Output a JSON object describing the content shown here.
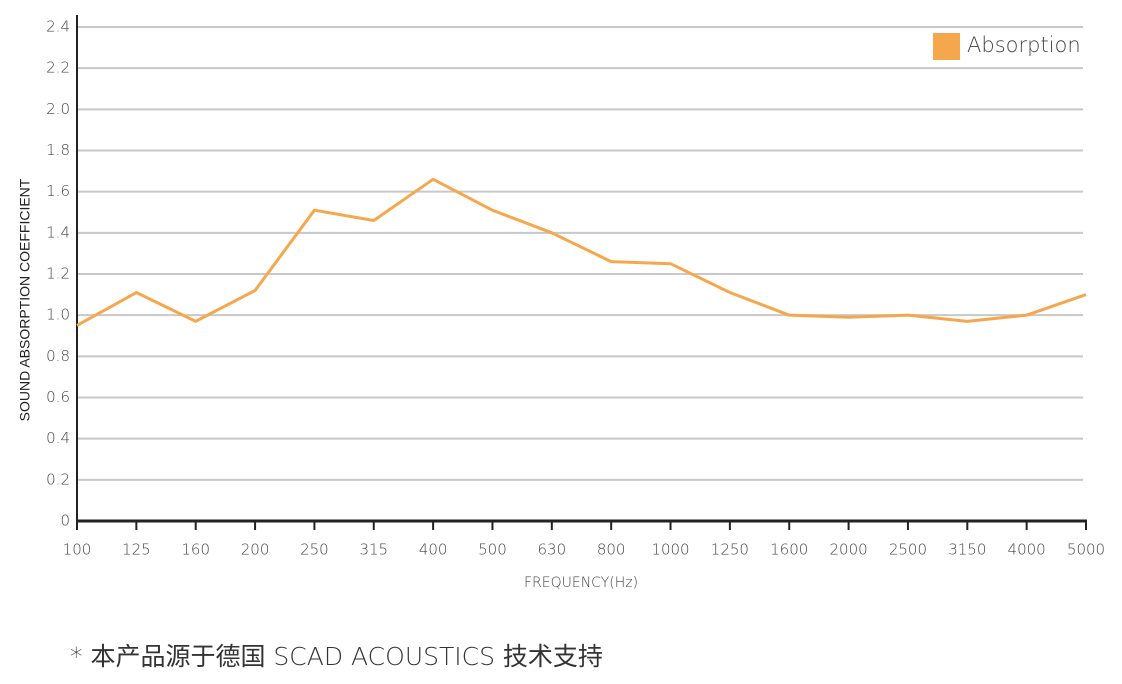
{
  "chart_data": {
    "type": "line",
    "y_label": "SOUND ABSORPTION COEFFICIENT",
    "x_label": "FREQUENCY(Hz)",
    "categories": [
      "100",
      "125",
      "160",
      "200",
      "250",
      "315",
      "400",
      "500",
      "630",
      "800",
      "1000",
      "1250",
      "1600",
      "2000",
      "2500",
      "3150",
      "4000",
      "5000"
    ],
    "series": [
      {
        "name": "Absorption",
        "color": "#f5a74e",
        "values": [
          0.95,
          1.11,
          0.97,
          1.12,
          1.51,
          1.46,
          1.66,
          1.51,
          1.4,
          1.26,
          1.25,
          1.11,
          1.0,
          0.99,
          1.0,
          0.97,
          1.0,
          1.1
        ]
      }
    ],
    "ylim": [
      0,
      2.4
    ],
    "yticks": [
      0,
      0.2,
      0.4,
      0.6,
      0.8,
      {
        "value": 1,
        "label": "1.0"
      },
      1.2,
      1.4,
      1.6,
      1.8,
      {
        "value": 2,
        "label": "2.0"
      },
      2.2,
      2.4
    ],
    "grid": true,
    "legend": "top-right",
    "note": "* 本产品源于德国 SCAD ACOUSTICS 技术支持"
  }
}
